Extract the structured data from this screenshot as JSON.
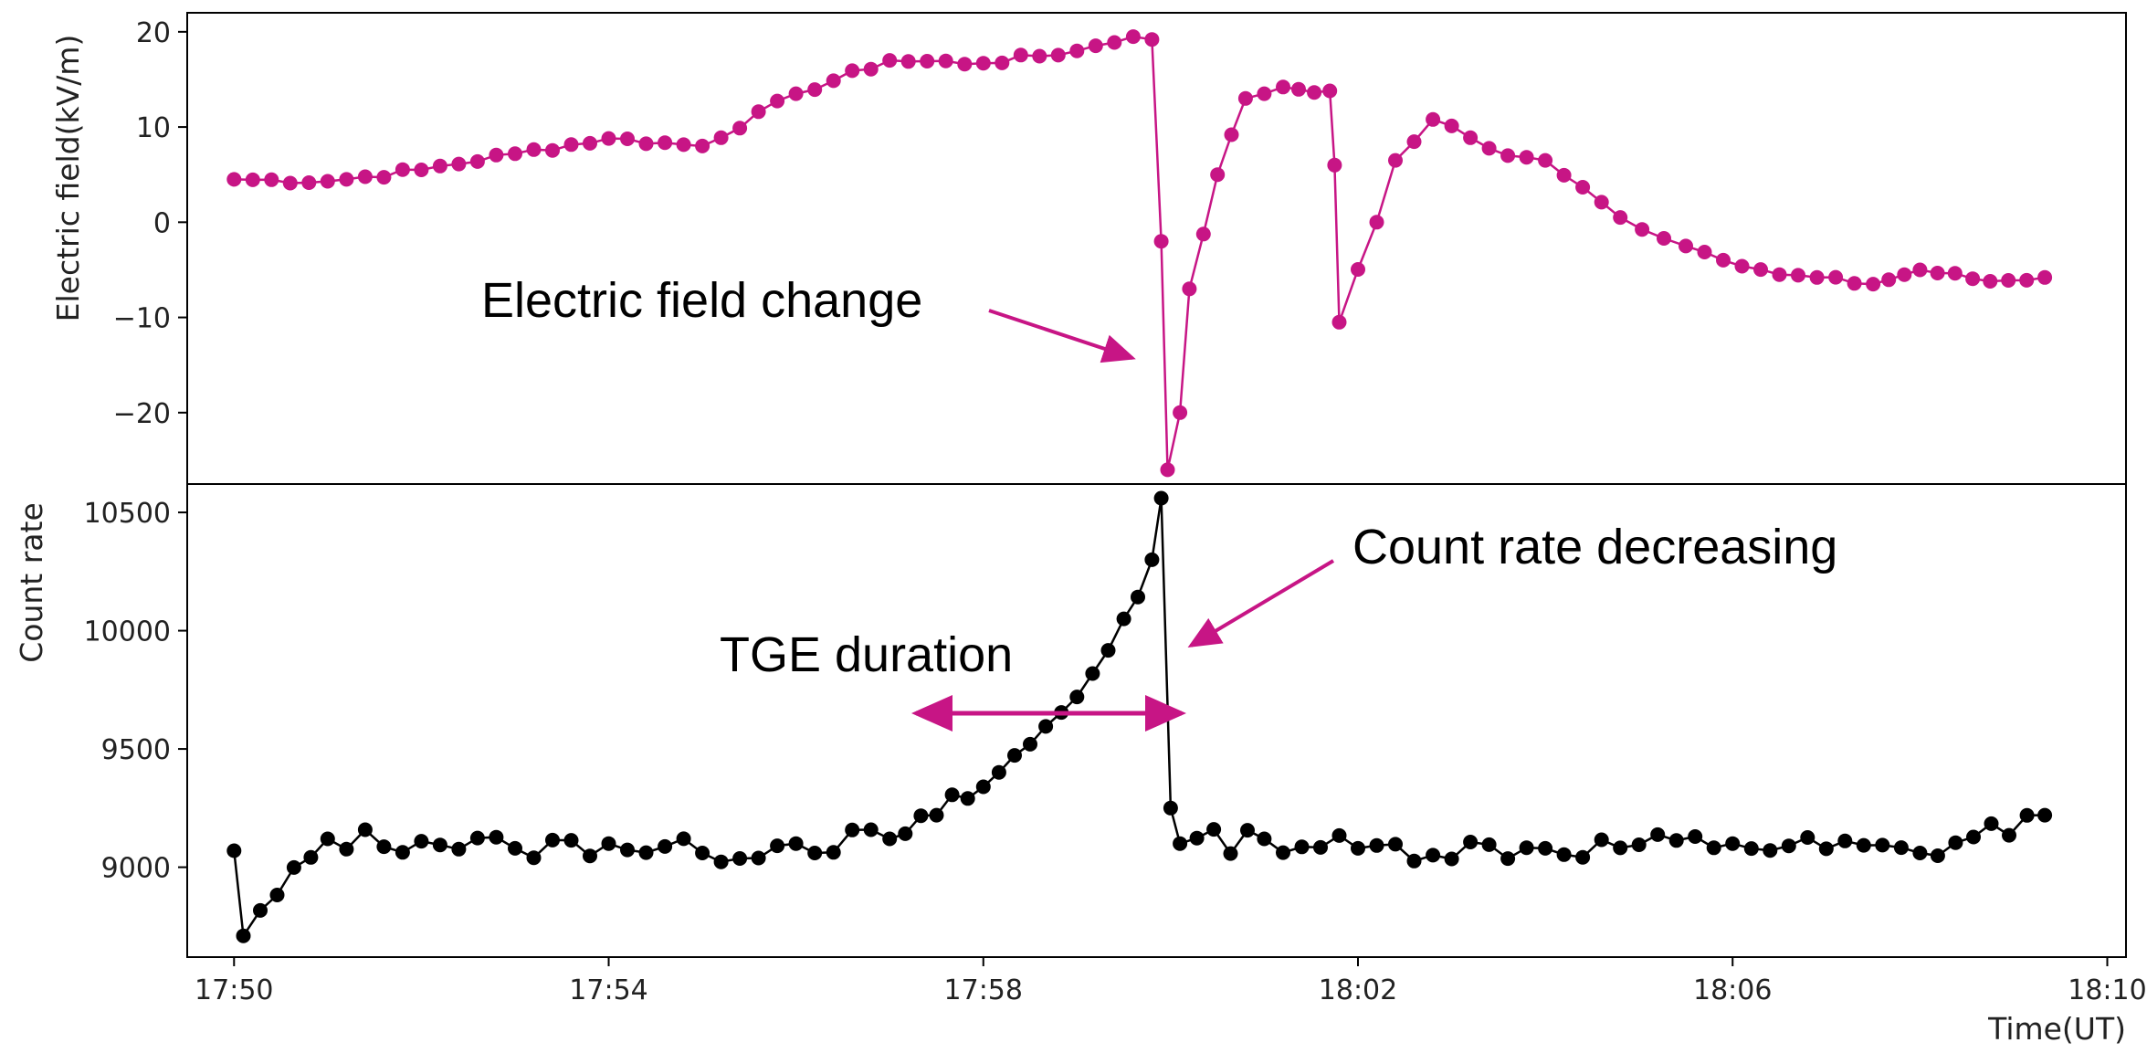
{
  "chart_data": {
    "type": "line",
    "xlabel": "Time(UT)",
    "x_ticks": [
      "17:50",
      "17:54",
      "17:58",
      "18:02",
      "18:06",
      "18:10"
    ],
    "x_range_minutes_after_1750": [
      -0.5,
      20.2
    ],
    "colors": {
      "field": "#c71585",
      "count": "#000000",
      "arrow": "#c71585"
    },
    "panels": [
      {
        "name": "Electric field",
        "ylabel": "Electric field(kV/m)",
        "y_ticks": [
          20,
          10,
          0,
          -10,
          -20
        ],
        "ylim": [
          -27.5,
          22
        ],
        "series": [
          {
            "color": "#c71585",
            "keypoints": [
              [
                "17:50:00",
                4.5
              ],
              [
                "17:51:00",
                4.3
              ],
              [
                "17:52:00",
                5.5
              ],
              [
                "17:53:00",
                7.2
              ],
              [
                "17:54:00",
                8.8
              ],
              [
                "17:55:00",
                8.0
              ],
              [
                "17:56:00",
                13.5
              ],
              [
                "17:57:00",
                17.0
              ],
              [
                "17:58:00",
                16.7
              ],
              [
                "17:59:00",
                18.0
              ],
              [
                "17:59:36",
                19.5
              ],
              [
                "17:59:48",
                19.2
              ],
              [
                "17:59:54",
                -2.0
              ],
              [
                "17:59:58",
                -26.0
              ],
              [
                "18:00:06",
                -20.0
              ],
              [
                "18:00:12",
                -7.0
              ],
              [
                "18:00:30",
                5.0
              ],
              [
                "18:00:48",
                13.0
              ],
              [
                "18:01:12",
                14.2
              ],
              [
                "18:01:42",
                13.8
              ],
              [
                "18:01:45",
                6.0
              ],
              [
                "18:01:48",
                -10.5
              ],
              [
                "18:02:12",
                0.0
              ],
              [
                "18:02:24",
                6.5
              ],
              [
                "18:02:48",
                10.8
              ],
              [
                "18:03:36",
                7.0
              ],
              [
                "18:04:00",
                6.5
              ],
              [
                "18:04:48",
                0.5
              ],
              [
                "18:05:30",
                -2.5
              ],
              [
                "18:06:30",
                -5.5
              ],
              [
                "18:07:30",
                -6.5
              ],
              [
                "18:08:00",
                -5.0
              ],
              [
                "18:08:45",
                -6.2
              ],
              [
                "18:09:20",
                -5.8
              ]
            ]
          }
        ]
      },
      {
        "name": "Count rate",
        "ylabel": "Count rate",
        "y_ticks": [
          10500,
          10000,
          9500,
          9000
        ],
        "ylim": [
          8620,
          10620
        ],
        "series": [
          {
            "color": "#000000",
            "keypoints": [
              [
                "17:50:00",
                9070
              ],
              [
                "17:50:06",
                8710
              ],
              [
                "17:51:00",
                9120
              ],
              [
                "17:52:00",
                9110
              ],
              [
                "17:53:00",
                9080
              ],
              [
                "17:54:00",
                9100
              ],
              [
                "17:55:00",
                9060
              ],
              [
                "17:56:00",
                9100
              ],
              [
                "17:57:00",
                9120
              ],
              [
                "17:57:30",
                9220
              ],
              [
                "17:58:00",
                9340
              ],
              [
                "17:58:30",
                9520
              ],
              [
                "17:59:00",
                9720
              ],
              [
                "17:59:30",
                10050
              ],
              [
                "17:59:48",
                10300
              ],
              [
                "17:59:54",
                10560
              ],
              [
                "18:00:00",
                9250
              ],
              [
                "18:00:06",
                9100
              ],
              [
                "18:01:00",
                9120
              ],
              [
                "18:02:00",
                9080
              ],
              [
                "18:04:00",
                9080
              ],
              [
                "18:06:00",
                9100
              ],
              [
                "18:08:00",
                9060
              ],
              [
                "18:09:20",
                9220
              ]
            ]
          }
        ]
      }
    ],
    "annotations": [
      {
        "text": "Electric field change"
      },
      {
        "text": "Count rate decreasing"
      },
      {
        "text": "TGE duration"
      }
    ]
  }
}
